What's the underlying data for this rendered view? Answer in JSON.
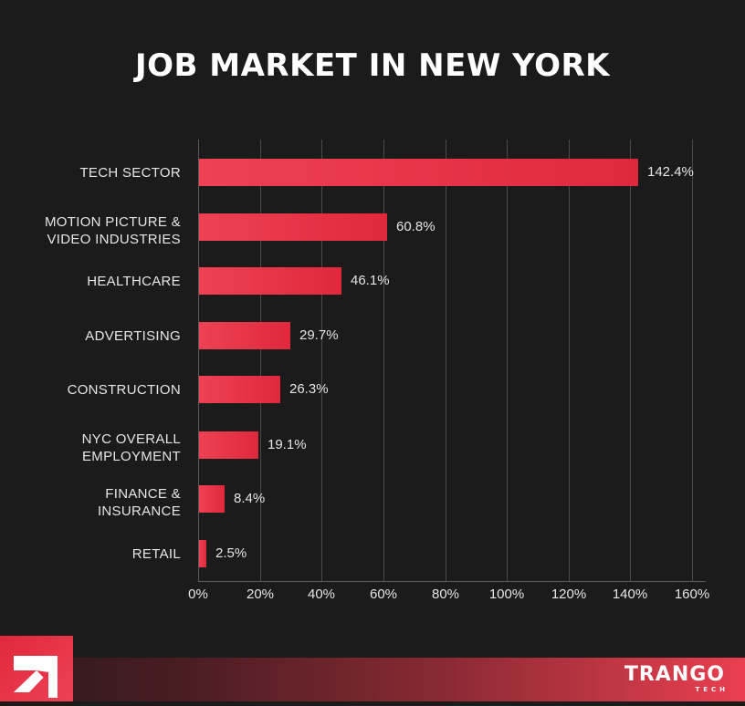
{
  "title": "JOB MARKET IN NEW YORK",
  "chart_data": {
    "type": "bar",
    "orientation": "horizontal",
    "title": "JOB MARKET IN NEW YORK",
    "xlabel": "",
    "ylabel": "",
    "categories": [
      "TECH SECTOR",
      "MOTION PICTURE & VIDEO INDUSTRIES",
      "HEALTHCARE",
      "ADVERTISING",
      "CONSTRUCTION",
      "NYC OVERALL EMPLOYMENT",
      "FINANCE & INSURANCE",
      "RETAIL"
    ],
    "values": [
      142.4,
      60.8,
      46.1,
      29.7,
      26.3,
      19.1,
      8.4,
      2.5
    ],
    "value_labels": [
      "142.4%",
      "60.8%",
      "46.1%",
      "29.7%",
      "26.3%",
      "19.1%",
      "8.4%",
      "2.5%"
    ],
    "xlim": [
      0,
      160
    ],
    "x_ticks": [
      "0%",
      "20%",
      "40%",
      "60%",
      "80%",
      "100%",
      "120%",
      "140%",
      "160%"
    ],
    "grid": true,
    "legend": null,
    "bar_color": "#e8334a"
  },
  "labels": {
    "cat0_l1": "TECH SECTOR",
    "cat1_l1": "MOTION PICTURE &",
    "cat1_l2": "VIDEO INDUSTRIES",
    "cat2_l1": "HEALTHCARE",
    "cat3_l1": "ADVERTISING",
    "cat4_l1": "CONSTRUCTION",
    "cat5_l1": "NYC OVERALL",
    "cat5_l2": "EMPLOYMENT",
    "cat6_l1": "FINANCE &",
    "cat6_l2": "INSURANCE",
    "cat7_l1": "RETAIL"
  },
  "footer": {
    "brand_name": "TRANGO",
    "brand_sub": "TECH",
    "accent": "#e8334a"
  }
}
